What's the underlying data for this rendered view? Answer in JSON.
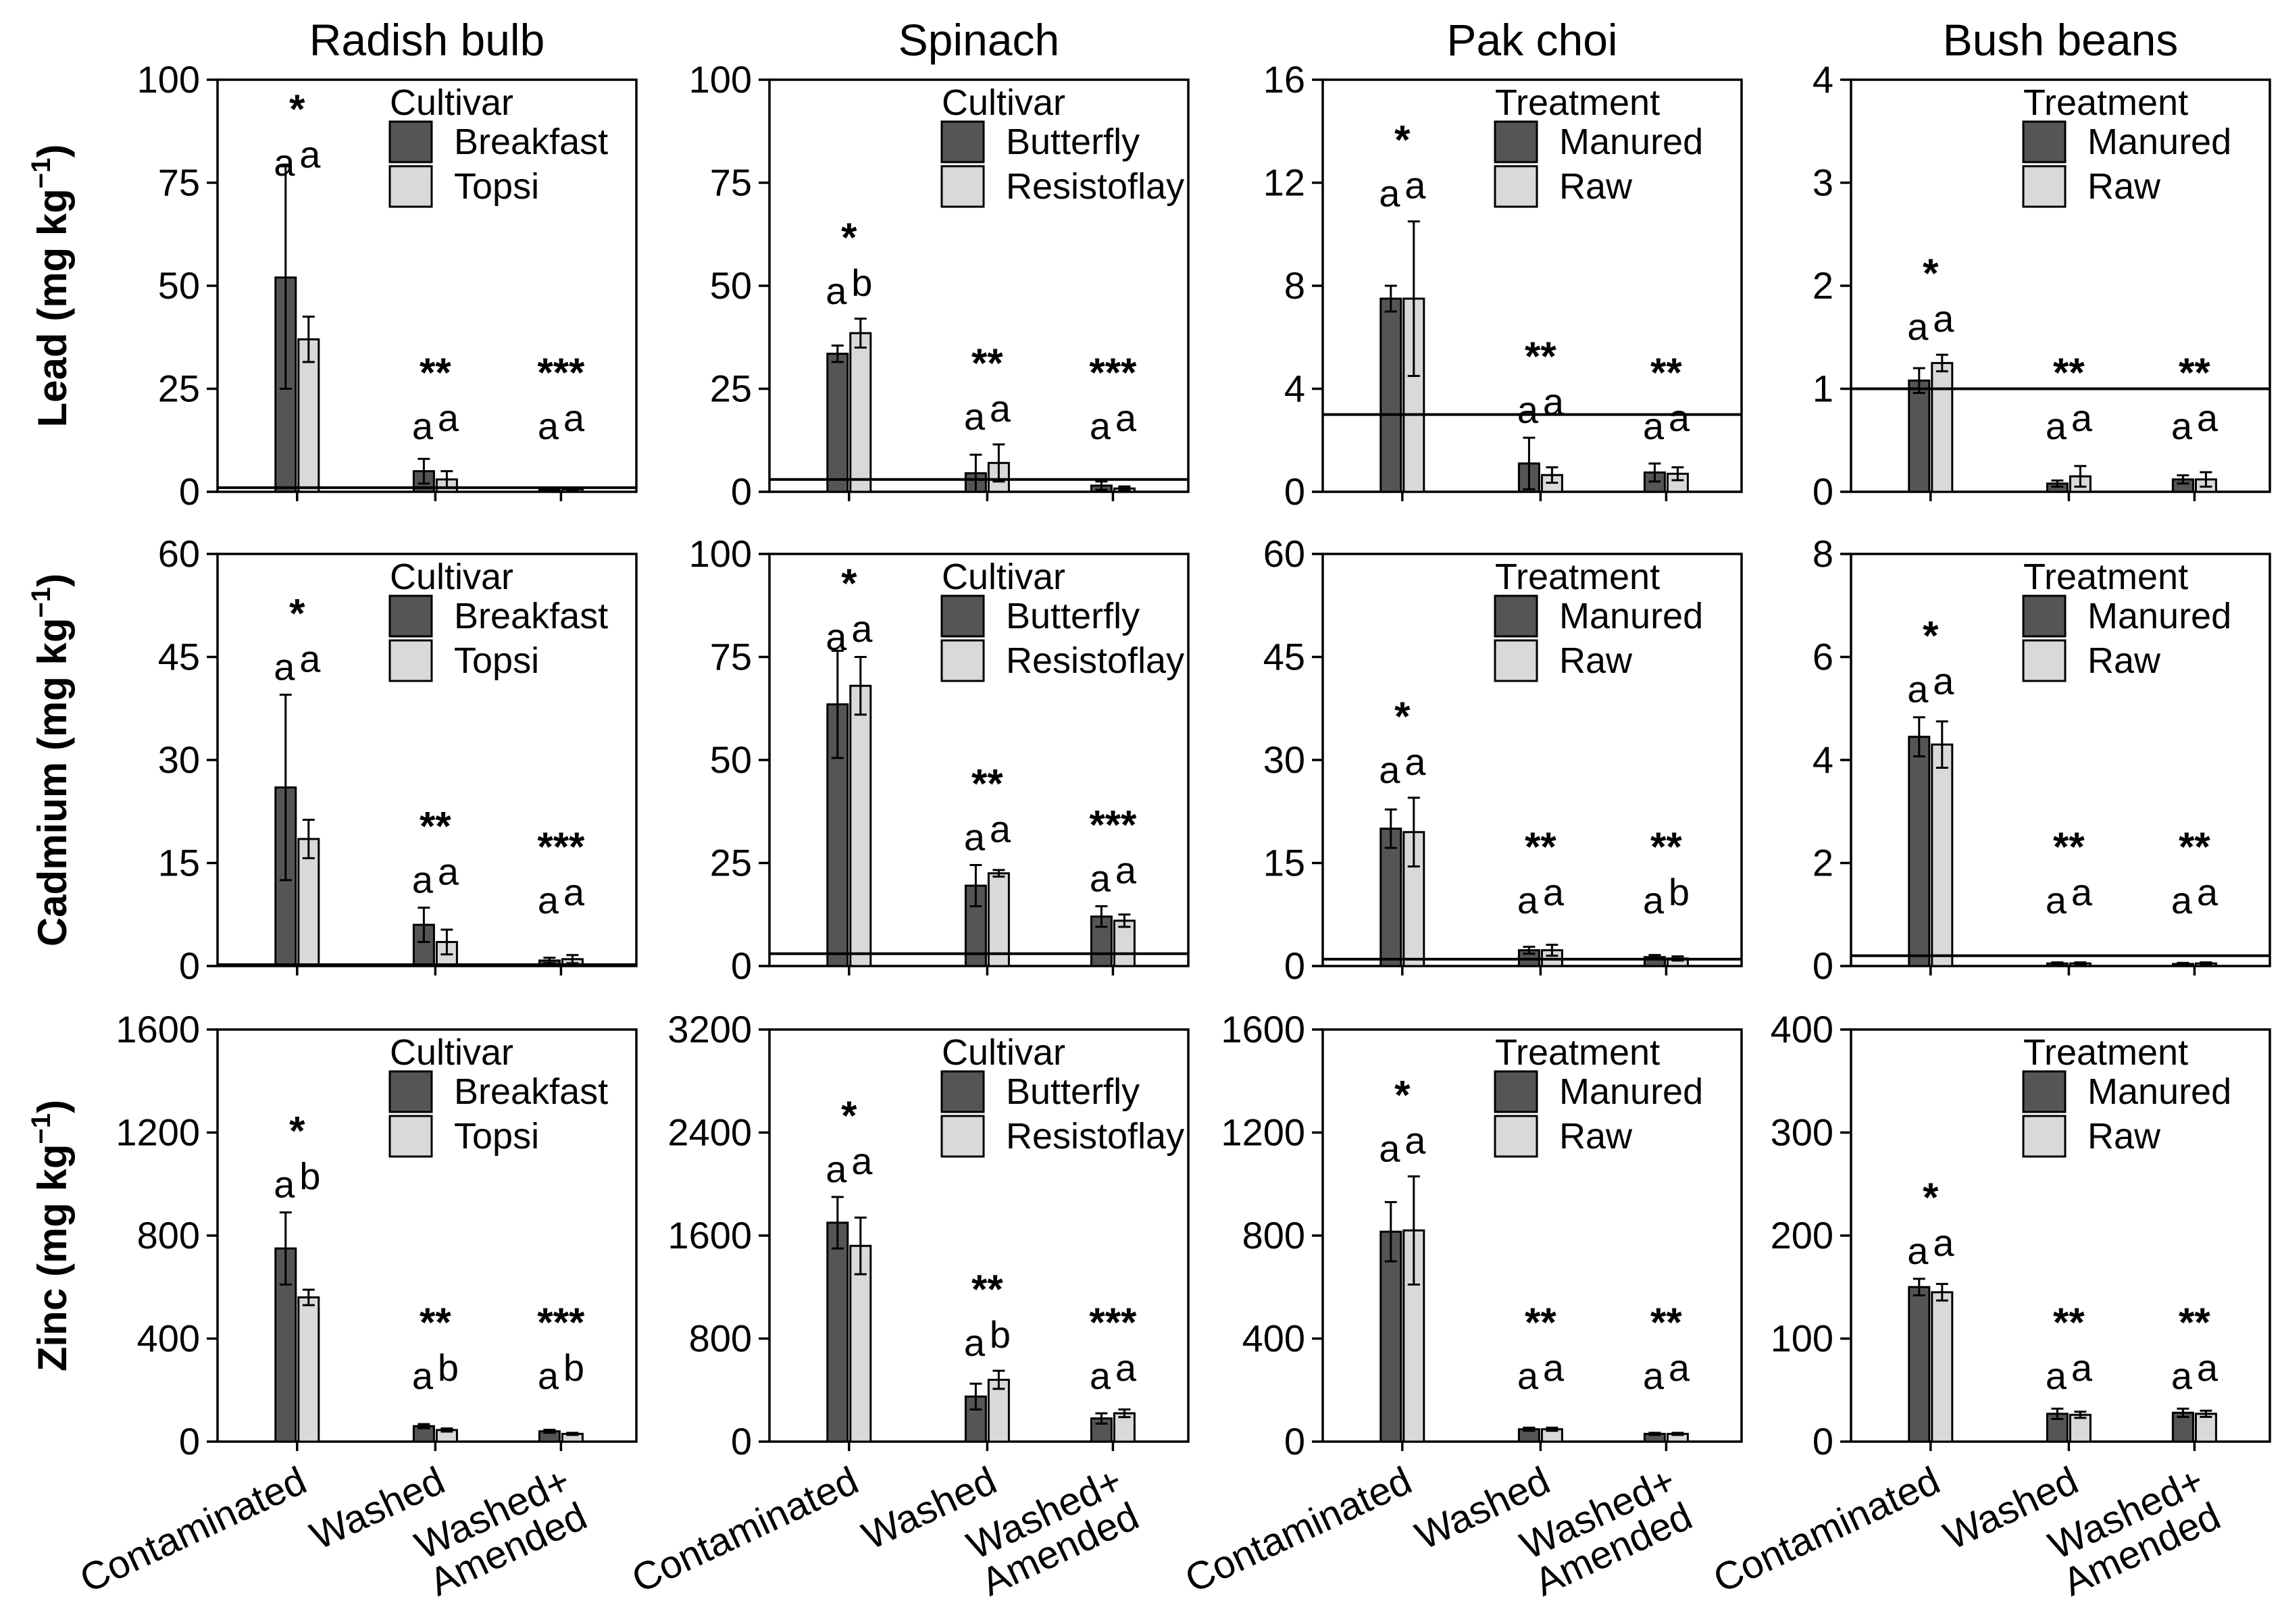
{
  "figure": {
    "columns": [
      "Radish bulb",
      "Spinach",
      "Pak choi",
      "Bush beans"
    ],
    "rows": [
      "Lead",
      "Cadmium",
      "Zinc"
    ],
    "row_labels": [
      {
        "element": "Lead",
        "unit": " (mg kg",
        "exp": "−1",
        "close": ")"
      },
      {
        "element": "Cadmium",
        "unit": " (mg kg",
        "exp": "−1",
        "close": ")"
      },
      {
        "element": "Zinc",
        "unit": " (mg kg",
        "exp": "−1",
        "close": ")"
      }
    ],
    "categories": [
      "Contaminated",
      "Washed",
      "Washed+|Amended"
    ],
    "colors": {
      "series1": "#555555",
      "series2": "#d9d9d9",
      "stroke": "#000000"
    }
  },
  "chart_data": [
    {
      "type": "bar",
      "row": "Lead",
      "column": "Radish bulb",
      "ylim": [
        0,
        100
      ],
      "yticks": [
        0,
        25,
        50,
        75,
        100
      ],
      "legend_title": "Cultivar",
      "series": [
        {
          "name": "Breakfast",
          "values": [
            52,
            5,
            0.5
          ],
          "errors": [
            27,
            3,
            0.3
          ]
        },
        {
          "name": "Topsi",
          "values": [
            37,
            3,
            0.6
          ],
          "errors": [
            5.5,
            2,
            0.4
          ]
        }
      ],
      "letters": [
        [
          "a",
          "a"
        ],
        [
          "a",
          "a"
        ],
        [
          "a",
          "a"
        ]
      ],
      "stars": [
        "*",
        "**",
        "***"
      ],
      "reference_line": 1
    },
    {
      "type": "bar",
      "row": "Lead",
      "column": "Spinach",
      "ylim": [
        0,
        100
      ],
      "yticks": [
        0,
        25,
        50,
        75,
        100
      ],
      "legend_title": "Cultivar",
      "series": [
        {
          "name": "Butterfly",
          "values": [
            33.5,
            4.5,
            1.5
          ],
          "errors": [
            2,
            4.5,
            1
          ]
        },
        {
          "name": "Resistoflay",
          "values": [
            38.5,
            7,
            0.8
          ],
          "errors": [
            3.5,
            4.5,
            0.5
          ]
        }
      ],
      "letters": [
        [
          "a",
          "b"
        ],
        [
          "a",
          "a"
        ],
        [
          "a",
          "a"
        ]
      ],
      "stars": [
        "*",
        "**",
        "***"
      ],
      "reference_line": 3
    },
    {
      "type": "bar",
      "row": "Lead",
      "column": "Pak choi",
      "ylim": [
        0,
        16
      ],
      "yticks": [
        0,
        4,
        8,
        12,
        16
      ],
      "legend_title": "Treatment",
      "series": [
        {
          "name": "Manured",
          "values": [
            7.5,
            1.1,
            0.75
          ],
          "errors": [
            0.5,
            1,
            0.35
          ]
        },
        {
          "name": "Raw",
          "values": [
            7.5,
            0.65,
            0.7
          ],
          "errors": [
            3,
            0.3,
            0.25
          ]
        }
      ],
      "letters": [
        [
          "a",
          "a"
        ],
        [
          "a",
          "a"
        ],
        [
          "a",
          "a"
        ]
      ],
      "stars": [
        "*",
        "**",
        "**"
      ],
      "reference_line": 3
    },
    {
      "type": "bar",
      "row": "Lead",
      "column": "Bush beans",
      "ylim": [
        0,
        4
      ],
      "yticks": [
        0,
        1,
        2,
        3,
        4
      ],
      "legend_title": "Treatment",
      "series": [
        {
          "name": "Manured",
          "values": [
            1.08,
            0.08,
            0.12
          ],
          "errors": [
            0.12,
            0.03,
            0.04
          ]
        },
        {
          "name": "Raw",
          "values": [
            1.25,
            0.15,
            0.12
          ],
          "errors": [
            0.08,
            0.1,
            0.07
          ]
        }
      ],
      "letters": [
        [
          "a",
          "a"
        ],
        [
          "a",
          "a"
        ],
        [
          "a",
          "a"
        ]
      ],
      "stars": [
        "*",
        "**",
        "**"
      ],
      "reference_line": 1
    },
    {
      "type": "bar",
      "row": "Cadmium",
      "column": "Radish bulb",
      "ylim": [
        0,
        60
      ],
      "yticks": [
        0,
        15,
        30,
        45,
        60
      ],
      "legend_title": "Cultivar",
      "series": [
        {
          "name": "Breakfast",
          "values": [
            26,
            6,
            0.8
          ],
          "errors": [
            13.5,
            2.5,
            0.4
          ]
        },
        {
          "name": "Topsi",
          "values": [
            18.5,
            3.5,
            1
          ],
          "errors": [
            2.8,
            1.8,
            0.6
          ]
        }
      ],
      "letters": [
        [
          "a",
          "a"
        ],
        [
          "a",
          "a"
        ],
        [
          "a",
          "a"
        ]
      ],
      "stars": [
        "*",
        "**",
        "***"
      ],
      "reference_line": 0.2
    },
    {
      "type": "bar",
      "row": "Cadmium",
      "column": "Spinach",
      "ylim": [
        0,
        100
      ],
      "yticks": [
        0,
        25,
        50,
        75,
        100
      ],
      "legend_title": "Cultivar",
      "series": [
        {
          "name": "Butterfly",
          "values": [
            63.5,
            19.5,
            12
          ],
          "errors": [
            13,
            5,
            2.5
          ]
        },
        {
          "name": "Resistoflay",
          "values": [
            68,
            22.5,
            11
          ],
          "errors": [
            7,
            0.8,
            1.5
          ]
        }
      ],
      "letters": [
        [
          "a",
          "a"
        ],
        [
          "a",
          "a"
        ],
        [
          "a",
          "a"
        ]
      ],
      "stars": [
        "*",
        "**",
        "***"
      ],
      "reference_line": 3
    },
    {
      "type": "bar",
      "row": "Cadmium",
      "column": "Pak choi",
      "ylim": [
        0,
        60
      ],
      "yticks": [
        0,
        15,
        30,
        45,
        60
      ],
      "legend_title": "Treatment",
      "series": [
        {
          "name": "Manured",
          "values": [
            20,
            2.3,
            1.3
          ],
          "errors": [
            2.8,
            0.5,
            0.3
          ]
        },
        {
          "name": "Raw",
          "values": [
            19.5,
            2.3,
            1.1
          ],
          "errors": [
            5,
            0.8,
            0.3
          ]
        }
      ],
      "letters": [
        [
          "a",
          "a"
        ],
        [
          "a",
          "a"
        ],
        [
          "a",
          "b"
        ]
      ],
      "stars": [
        "*",
        "**",
        "**"
      ],
      "reference_line": 1
    },
    {
      "type": "bar",
      "row": "Cadmium",
      "column": "Bush beans",
      "ylim": [
        0,
        8
      ],
      "yticks": [
        0,
        2,
        4,
        6,
        8
      ],
      "legend_title": "Treatment",
      "series": [
        {
          "name": "Manured",
          "values": [
            4.45,
            0.05,
            0.04
          ],
          "errors": [
            0.38,
            0.02,
            0.02
          ]
        },
        {
          "name": "Raw",
          "values": [
            4.3,
            0.05,
            0.05
          ],
          "errors": [
            0.45,
            0.02,
            0.02
          ]
        }
      ],
      "letters": [
        [
          "a",
          "a"
        ],
        [
          "a",
          "a"
        ],
        [
          "a",
          "a"
        ]
      ],
      "stars": [
        "*",
        "**",
        "**"
      ],
      "reference_line": 0.2
    },
    {
      "type": "bar",
      "row": "Zinc",
      "column": "Radish bulb",
      "ylim": [
        0,
        1600
      ],
      "yticks": [
        0,
        400,
        800,
        1200,
        1600
      ],
      "legend_title": "Cultivar",
      "series": [
        {
          "name": "Breakfast",
          "values": [
            750,
            60,
            40
          ],
          "errors": [
            140,
            8,
            6
          ]
        },
        {
          "name": "Topsi",
          "values": [
            560,
            45,
            30
          ],
          "errors": [
            30,
            6,
            4
          ]
        }
      ],
      "letters": [
        [
          "a",
          "b"
        ],
        [
          "a",
          "b"
        ],
        [
          "a",
          "b"
        ]
      ],
      "stars": [
        "*",
        "**",
        "***"
      ],
      "reference_line": null
    },
    {
      "type": "bar",
      "row": "Zinc",
      "column": "Spinach",
      "ylim": [
        0,
        3200
      ],
      "yticks": [
        0,
        800,
        1600,
        2400,
        3200
      ],
      "legend_title": "Cultivar",
      "series": [
        {
          "name": "Butterfly",
          "values": [
            1700,
            350,
            180
          ],
          "errors": [
            200,
            100,
            40
          ]
        },
        {
          "name": "Resistoflay",
          "values": [
            1520,
            480,
            220
          ],
          "errors": [
            220,
            70,
            30
          ]
        }
      ],
      "letters": [
        [
          "a",
          "a"
        ],
        [
          "a",
          "b"
        ],
        [
          "a",
          "a"
        ]
      ],
      "stars": [
        "*",
        "**",
        "***"
      ],
      "reference_line": null
    },
    {
      "type": "bar",
      "row": "Zinc",
      "column": "Pak choi",
      "ylim": [
        0,
        1600
      ],
      "yticks": [
        0,
        400,
        800,
        1200,
        1600
      ],
      "legend_title": "Treatment",
      "series": [
        {
          "name": "Manured",
          "values": [
            815,
            48,
            30
          ],
          "errors": [
            115,
            6,
            4
          ]
        },
        {
          "name": "Raw",
          "values": [
            820,
            48,
            30
          ],
          "errors": [
            210,
            6,
            4
          ]
        }
      ],
      "letters": [
        [
          "a",
          "a"
        ],
        [
          "a",
          "a"
        ],
        [
          "a",
          "a"
        ]
      ],
      "stars": [
        "*",
        "**",
        "**"
      ],
      "reference_line": null
    },
    {
      "type": "bar",
      "row": "Zinc",
      "column": "Bush beans",
      "ylim": [
        0,
        400
      ],
      "yticks": [
        0,
        100,
        200,
        300,
        400
      ],
      "legend_title": "Treatment",
      "series": [
        {
          "name": "Manured",
          "values": [
            150,
            27,
            28
          ],
          "errors": [
            8,
            5,
            4
          ]
        },
        {
          "name": "Raw",
          "values": [
            145,
            26,
            27
          ],
          "errors": [
            8,
            3,
            3
          ]
        }
      ],
      "letters": [
        [
          "a",
          "a"
        ],
        [
          "a",
          "a"
        ],
        [
          "a",
          "a"
        ]
      ],
      "stars": [
        "*",
        "**",
        "**"
      ],
      "reference_line": null
    }
  ]
}
